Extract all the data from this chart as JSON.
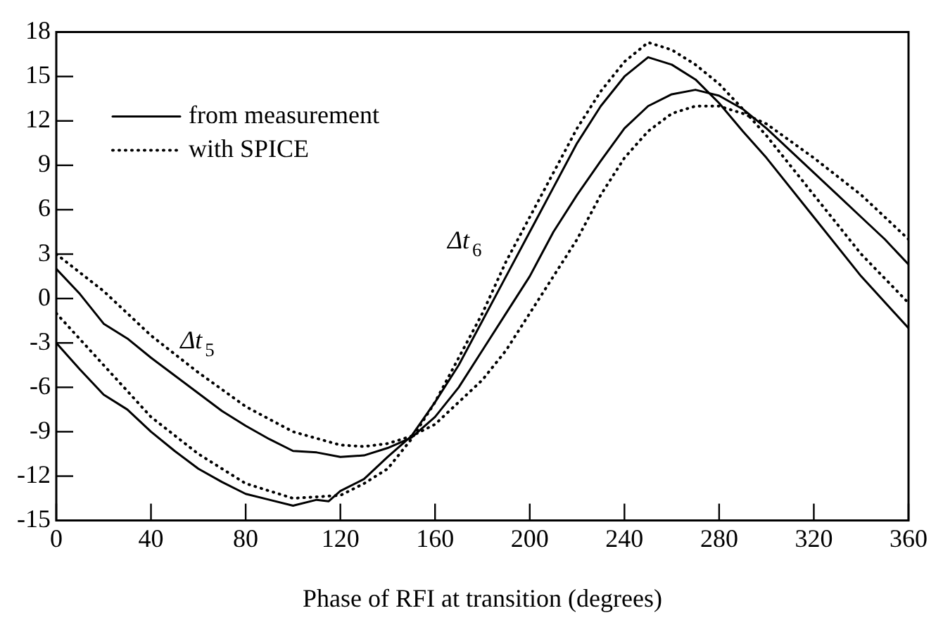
{
  "chart_data": {
    "type": "line",
    "xlabel": "Phase of RFI at transition (degrees)",
    "xlim": [
      0,
      360
    ],
    "xticks": [
      0,
      40,
      80,
      120,
      160,
      200,
      240,
      280,
      320,
      360
    ],
    "ylim": [
      -15,
      18
    ],
    "yticks": [
      -15,
      -12,
      -9,
      -6,
      -3,
      0,
      3,
      6,
      9,
      12,
      15,
      18
    ],
    "grid": false,
    "legend": "top left",
    "marker": "none",
    "annotations": [
      {
        "text": "Δt$_{5}$",
        "x": 50,
        "y": -3.75
      },
      {
        "text": "Δt$_{6}$",
        "x": 195,
        "y": 3
      }
    ],
    "series": [
      {
        "name": "from measurement",
        "color": "#000000",
        "line_style": "solid",
        "x": [
          0,
          10,
          20,
          30,
          40,
          50,
          60,
          70,
          80,
          90,
          100,
          110,
          120,
          130,
          140,
          150,
          160,
          170,
          180,
          190,
          200,
          210,
          220,
          230,
          240,
          250,
          260,
          270,
          280,
          290,
          300,
          310,
          320,
          330,
          340,
          350,
          360
        ],
        "values": [
          2,
          0.3,
          -1.7,
          -2.7,
          -4,
          -5.2,
          -6.4,
          -7.6,
          -8.6,
          -9.5,
          -10.3,
          -10.4,
          -10.7,
          -10.6,
          -10.1,
          -9.4,
          -8,
          -6,
          -3.5,
          -1,
          1.5,
          4.5,
          7,
          9.3,
          11.5,
          13,
          13.8,
          14.1,
          13.7,
          12.8,
          11.5,
          10,
          8.5,
          7,
          5.5,
          4,
          2.3
        ]
      },
      {
        "name": "with SPICE",
        "color": "#000000",
        "line_style": "dotted",
        "x": [
          0,
          20,
          40,
          60,
          80,
          100,
          120,
          130,
          140,
          150,
          160,
          170,
          180,
          190,
          200,
          210,
          220,
          230,
          240,
          250,
          260,
          270,
          280,
          290,
          300,
          320,
          340,
          360
        ],
        "values": [
          3,
          0.5,
          -2.5,
          -5,
          -7.3,
          -9,
          -9.9,
          -10,
          -9.8,
          -9.3,
          -8.5,
          -7,
          -5.5,
          -3.5,
          -1,
          1.5,
          4,
          7,
          9.5,
          11.3,
          12.5,
          13,
          13,
          12.5,
          11.8,
          9.5,
          7,
          4
        ]
      },
      {
        "color": "#000000",
        "line_style": "solid",
        "x": [
          0,
          10,
          20,
          30,
          40,
          50,
          60,
          70,
          80,
          90,
          100,
          110,
          115,
          120,
          130,
          140,
          150,
          160,
          170,
          180,
          190,
          200,
          210,
          220,
          230,
          240,
          250,
          260,
          270,
          280,
          290,
          300,
          320,
          340,
          360
        ],
        "values": [
          -3,
          -4.8,
          -6.5,
          -7.5,
          -9,
          -10.3,
          -11.5,
          -12.4,
          -13.2,
          -13.6,
          -14,
          -13.6,
          -13.7,
          -13,
          -12.2,
          -10.7,
          -9.3,
          -7,
          -4.5,
          -1.5,
          1.5,
          4.5,
          7.5,
          10.5,
          13,
          15,
          16.3,
          15.8,
          14.8,
          13.2,
          11.3,
          9.5,
          5.5,
          1.5,
          -2
        ]
      },
      {
        "color": "#000000",
        "line_style": "dotted",
        "x": [
          0,
          20,
          40,
          60,
          80,
          100,
          120,
          130,
          140,
          150,
          160,
          170,
          180,
          190,
          200,
          210,
          220,
          230,
          240,
          250,
          260,
          270,
          280,
          290,
          300,
          320,
          340,
          360
        ],
        "values": [
          -1,
          -4.5,
          -8,
          -10.5,
          -12.5,
          -13.5,
          -13.3,
          -12.5,
          -11.5,
          -9.5,
          -7,
          -4,
          -1,
          2.5,
          5.5,
          8.5,
          11.5,
          14,
          16,
          17.3,
          16.8,
          15.8,
          14.5,
          12.8,
          11,
          7,
          3,
          -0.3
        ]
      }
    ]
  }
}
